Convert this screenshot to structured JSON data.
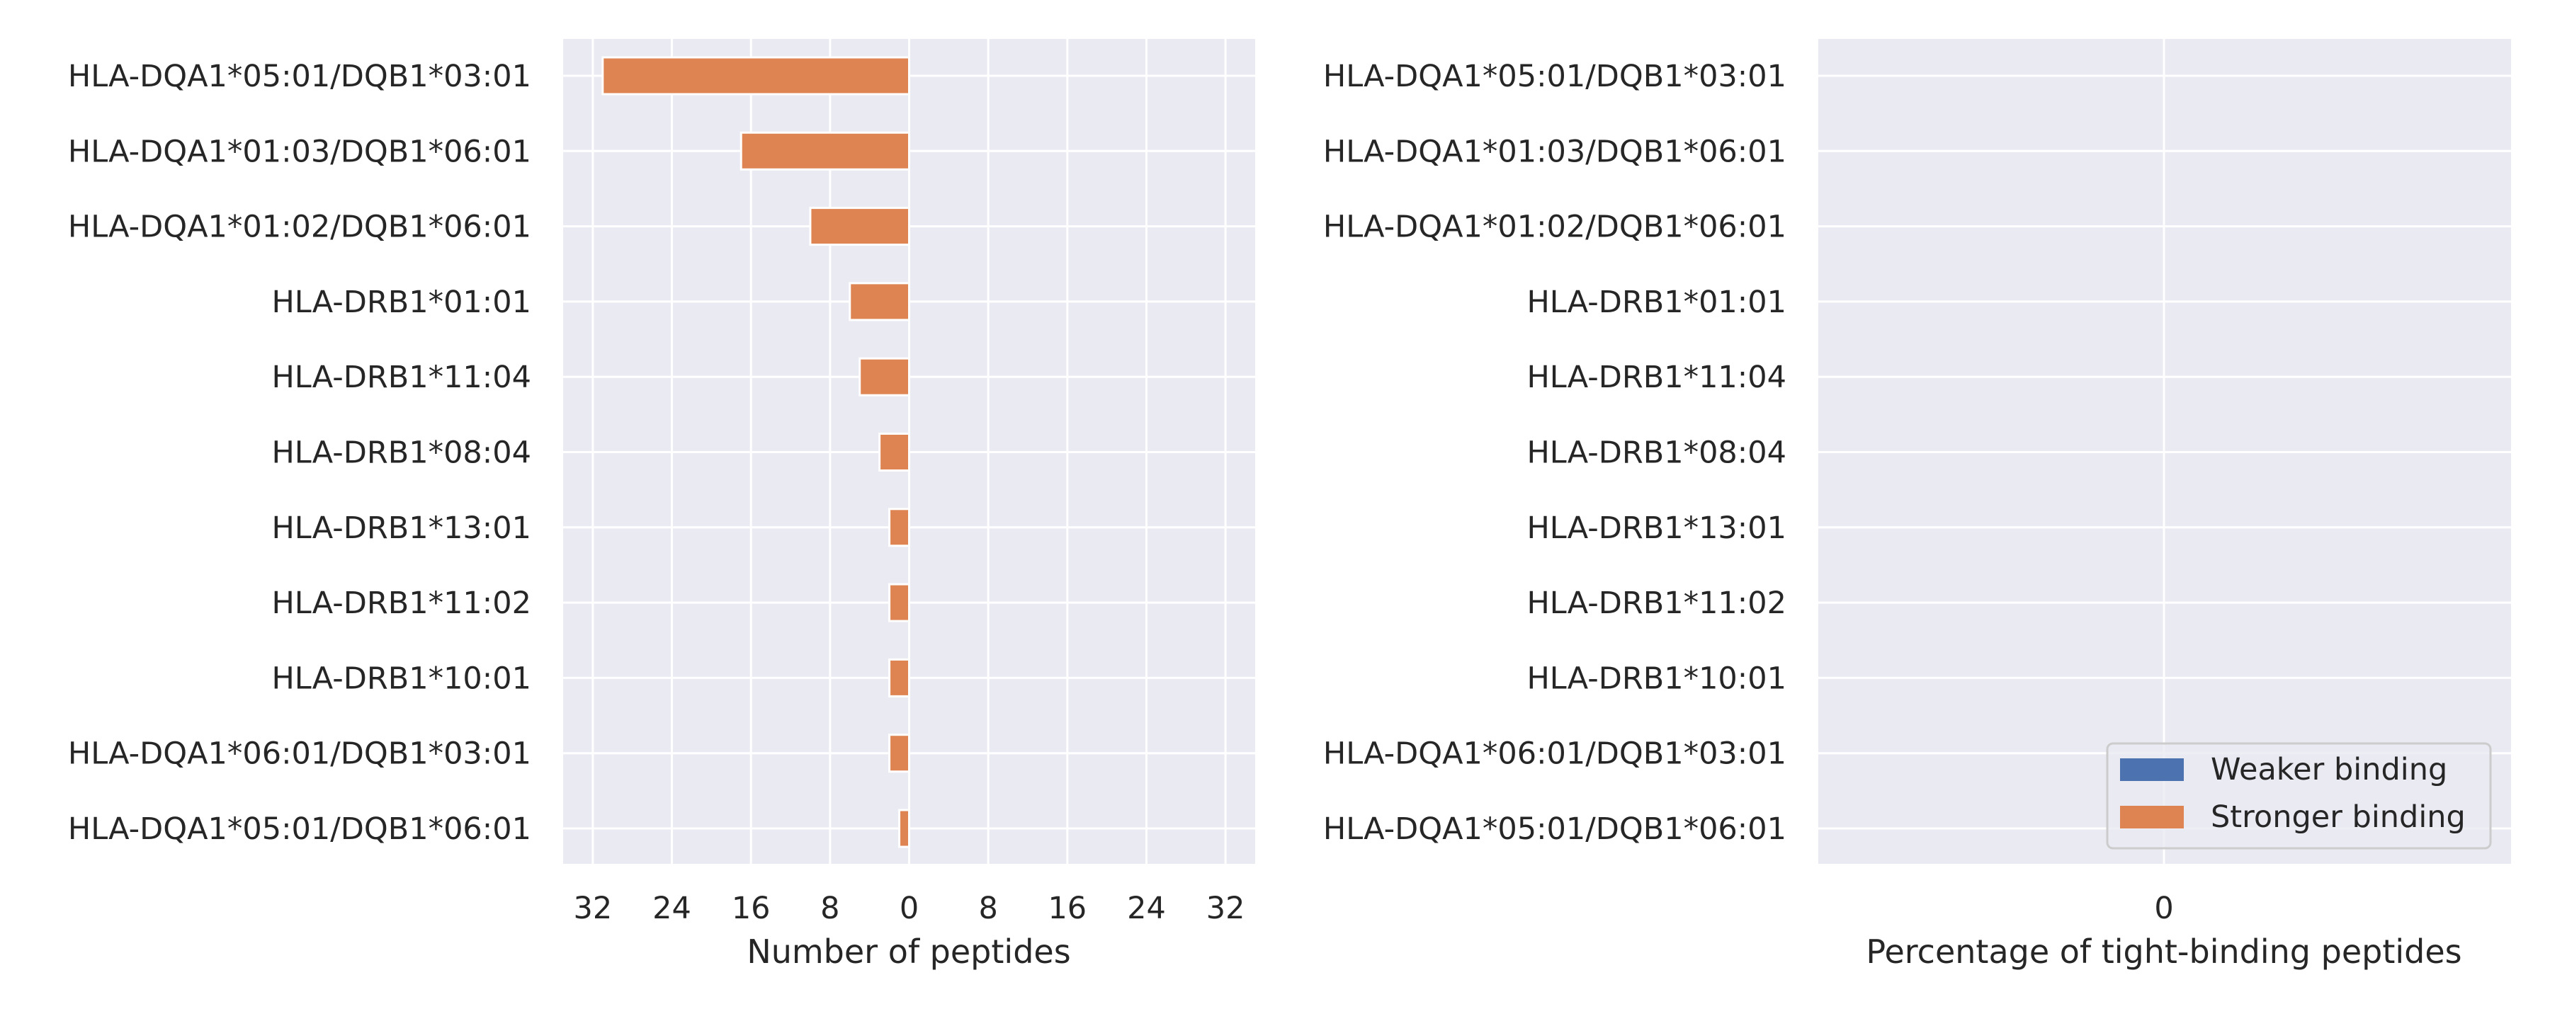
{
  "chart_data": [
    {
      "type": "bar",
      "orientation": "horizontal",
      "xlabel": "Number of peptides",
      "ylabel": "",
      "xlim": [
        -35,
        35
      ],
      "xticks": [
        -32,
        -24,
        -16,
        -8,
        0,
        8,
        16,
        24,
        32
      ],
      "xtick_labels": [
        "32",
        "24",
        "16",
        "8",
        "0",
        "8",
        "16",
        "24",
        "32"
      ],
      "grid": true,
      "categories": [
        "HLA-DQA1*05:01/DQB1*03:01",
        "HLA-DQA1*01:03/DQB1*06:01",
        "HLA-DQA1*01:02/DQB1*06:01",
        "HLA-DRB1*01:01",
        "HLA-DRB1*11:04",
        "HLA-DRB1*08:04",
        "HLA-DRB1*13:01",
        "HLA-DRB1*11:02",
        "HLA-DRB1*10:01",
        "HLA-DQA1*06:01/DQB1*03:01",
        "HLA-DQA1*05:01/DQB1*06:01"
      ],
      "series": [
        {
          "name": "Weaker binding",
          "color": "#4c72b0",
          "values": [
            0,
            0,
            0,
            0,
            0,
            0,
            0,
            0,
            0,
            0,
            0
          ]
        },
        {
          "name": "Stronger binding",
          "color": "#dd8452",
          "values": [
            31,
            17,
            10,
            6,
            5,
            3,
            2,
            2,
            2,
            2,
            1
          ]
        }
      ]
    },
    {
      "type": "bar",
      "orientation": "horizontal",
      "xlabel": "Percentage of tight-binding peptides",
      "ylabel": "",
      "xticks": [
        0
      ],
      "xtick_labels": [
        "0"
      ],
      "grid": true,
      "legend_position": "lower-right",
      "categories": [
        "HLA-DQA1*05:01/DQB1*03:01",
        "HLA-DQA1*01:03/DQB1*06:01",
        "HLA-DQA1*01:02/DQB1*06:01",
        "HLA-DRB1*01:01",
        "HLA-DRB1*11:04",
        "HLA-DRB1*08:04",
        "HLA-DRB1*13:01",
        "HLA-DRB1*11:02",
        "HLA-DRB1*10:01",
        "HLA-DQA1*06:01/DQB1*03:01",
        "HLA-DQA1*05:01/DQB1*06:01"
      ],
      "legend": [
        {
          "name": "Weaker binding",
          "color": "#4c72b0"
        },
        {
          "name": "Stronger binding",
          "color": "#dd8452"
        }
      ],
      "series": []
    }
  ]
}
